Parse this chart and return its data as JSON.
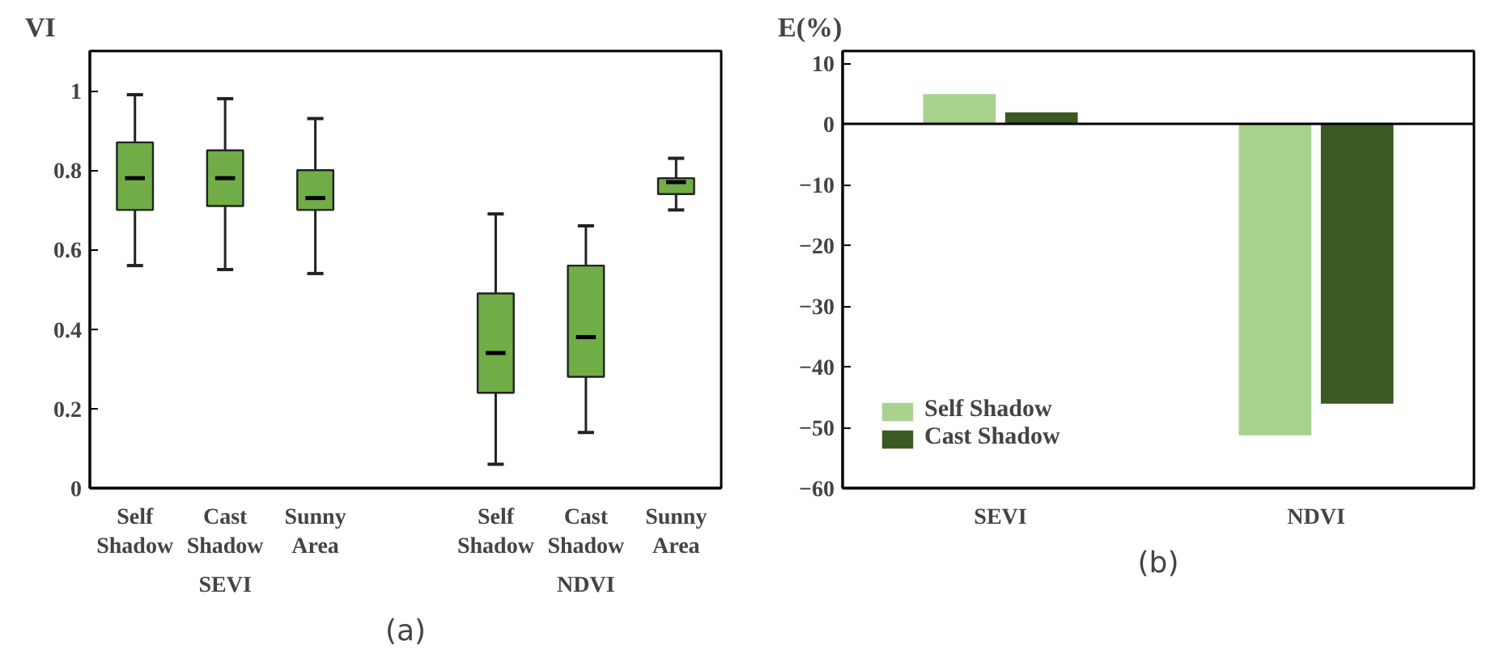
{
  "chart_data": [
    {
      "type": "box",
      "title": "(a)",
      "ylabel": "VI",
      "categories": [
        "Self Shadow",
        "Cast Shadow",
        "Sunny Area",
        null,
        "Self Shadow",
        "Cast Shadow",
        "Sunny Area"
      ],
      "series": [
        {
          "color": "#70ad47",
          "boxes": [
            {
              "low": 0.56,
              "q1": 0.7,
              "median": 0.78,
              "q3": 0.87,
              "high": 0.99
            },
            {
              "low": 0.55,
              "q1": 0.71,
              "median": 0.78,
              "q3": 0.85,
              "high": 0.98
            },
            {
              "low": 0.54,
              "q1": 0.7,
              "median": 0.73,
              "q3": 0.8,
              "high": 0.93
            },
            null,
            {
              "low": 0.06,
              "q1": 0.24,
              "median": 0.34,
              "q3": 0.49,
              "high": 0.69
            },
            {
              "low": 0.14,
              "q1": 0.28,
              "median": 0.38,
              "q3": 0.56,
              "high": 0.66
            },
            {
              "low": 0.7,
              "q1": 0.74,
              "median": 0.77,
              "q3": 0.78,
              "high": 0.83
            }
          ]
        }
      ],
      "ylim": [
        0,
        1.1
      ],
      "yticks": [
        0,
        0.2,
        0.4,
        0.6,
        0.8,
        1
      ],
      "grid": false,
      "annotations": [
        "SEVI",
        "NDVI"
      ]
    },
    {
      "type": "bar",
      "title": "(b)",
      "ylabel": "E(%)",
      "categories": [
        "SEVI",
        "NDVI"
      ],
      "series": [
        {
          "name": "Self Shadow",
          "color": "#a9d18e",
          "values": [
            4.9,
            -51.3
          ]
        },
        {
          "name": "Cast Shadow",
          "color": "#3b5a23",
          "values": [
            1.9,
            -46.1
          ]
        }
      ],
      "ylim": [
        -60,
        12
      ],
      "yticks": [
        {
          "value": -60,
          "label": "−60"
        },
        {
          "value": -50,
          "label": "−50"
        },
        {
          "value": -40,
          "label": "−40"
        },
        {
          "value": -30,
          "label": "−30"
        },
        {
          "value": -20,
          "label": "−20"
        },
        {
          "value": -10,
          "label": "−10"
        },
        0,
        10
      ],
      "ref_lines": [
        {
          "axis": "y",
          "value": 0
        }
      ],
      "grid": false,
      "legend": "bottom left"
    }
  ]
}
